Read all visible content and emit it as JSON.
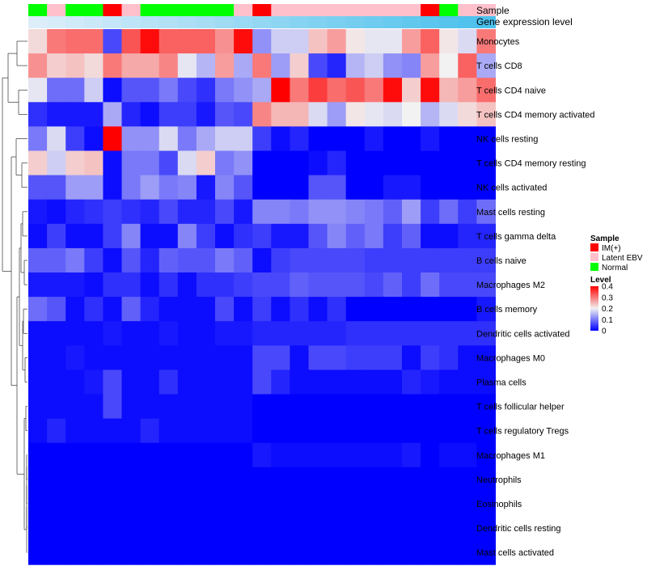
{
  "chart_data": {
    "type": "heatmap",
    "title": "",
    "colors": {
      "low": "#0000ff",
      "mid": "#f2f2f2",
      "high": "#ff0000",
      "grad_light": "#ddeefa",
      "grad_dark": "#4ac0ec"
    },
    "annotations": {
      "sample_label": "Sample",
      "gene_label": "Gene expression level",
      "sample": [
        "Normal",
        "Latent EBV",
        "Normal",
        "Normal",
        "IM(+)",
        "Latent EBV",
        "Normal",
        "Normal",
        "Normal",
        "Normal",
        "Normal",
        "Latent EBV",
        "IM(+)",
        "Latent EBV",
        "Latent EBV",
        "Latent EBV",
        "Latent EBV",
        "Latent EBV",
        "Latent EBV",
        "Latent EBV",
        "Latent EBV",
        "IM(+)",
        "Normal",
        "Latent EBV",
        "Latent EBV"
      ]
    },
    "legend_sample": {
      "title": "Sample",
      "entries": [
        {
          "label": "IM(+)",
          "color": "#ff0000"
        },
        {
          "label": "Latent EBV",
          "color": "#ffc0cb"
        },
        {
          "label": "Normal",
          "color": "#00ff00"
        }
      ]
    },
    "legend_level": {
      "title": "Level",
      "ticks": [
        "0.4",
        "0.3",
        "0.2",
        "0.1",
        "0"
      ],
      "range": [
        0,
        0.4
      ]
    },
    "rows": [
      "Monocytes",
      "T cells CD8",
      "T cells CD4 naive",
      "T cells CD4 memory activated",
      "NK cells resting",
      "T cells CD4 memory resting",
      "NK cells activated",
      "Mast cells resting",
      "T cells gamma delta",
      "B cells naive",
      "Macrophages M2",
      "B cells memory",
      "Dendritic cells activated",
      "Macrophages M0",
      "Plasma cells",
      "T cells follicular helper",
      "T cells regulatory  Tregs",
      "Macrophages M1",
      "Neutrophils",
      "Eosinophils",
      "Dendritic cells resting",
      "Mast cells activated"
    ],
    "values": [
      [
        0.22,
        0.3,
        0.31,
        0.31,
        0.06,
        0.33,
        0.39,
        0.32,
        0.32,
        0.32,
        0.28,
        0.39,
        0.12,
        0.17,
        0.17,
        0.24,
        0.27,
        0.21,
        0.19,
        0.19,
        0.27,
        0.32,
        0.21,
        0.18,
        0.3
      ],
      [
        0.28,
        0.23,
        0.24,
        0.22,
        0.3,
        0.26,
        0.26,
        0.29,
        0.19,
        0.15,
        0.27,
        0.14,
        0.3,
        0.13,
        0.23,
        0.06,
        0.03,
        0.15,
        0.17,
        0.12,
        0.11,
        0.27,
        0.2,
        0.32,
        0.14
      ],
      [
        0.19,
        0.09,
        0.09,
        0.17,
        0.01,
        0.07,
        0.07,
        0.1,
        0.06,
        0.04,
        0.1,
        0.12,
        0.14,
        0.4,
        0.3,
        0.35,
        0.31,
        0.33,
        0.3,
        0.39,
        0.23,
        0.39,
        0.25,
        0.27,
        0.31
      ],
      [
        0.04,
        0.02,
        0.02,
        0.02,
        0.14,
        0.03,
        0.01,
        0.05,
        0.05,
        0.02,
        0.07,
        0.06,
        0.29,
        0.25,
        0.25,
        0.18,
        0.13,
        0.21,
        0.19,
        0.18,
        0.2,
        0.15,
        0.18,
        0.22,
        0.24
      ],
      [
        0.1,
        0.18,
        0.05,
        0.01,
        0.4,
        0.12,
        0.12,
        0.18,
        0.1,
        0.14,
        0.17,
        0.17,
        0.05,
        0.01,
        0.03,
        0.0,
        0.0,
        0.0,
        0.02,
        0.0,
        0.0,
        0.02,
        0.0,
        0.0,
        0.0
      ],
      [
        0.23,
        0.17,
        0.23,
        0.24,
        0.01,
        0.1,
        0.1,
        0.06,
        0.18,
        0.23,
        0.1,
        0.12,
        0.0,
        0.0,
        0.0,
        0.01,
        0.03,
        0.0,
        0.0,
        0.0,
        0.0,
        0.0,
        0.0,
        0.0,
        0.0
      ],
      [
        0.07,
        0.07,
        0.13,
        0.13,
        0.01,
        0.1,
        0.13,
        0.1,
        0.11,
        0.02,
        0.11,
        0.07,
        0.0,
        0.0,
        0.0,
        0.07,
        0.07,
        0.0,
        0.0,
        0.02,
        0.02,
        0.0,
        0.0,
        0.0,
        0.0
      ],
      [
        0.02,
        0.01,
        0.03,
        0.04,
        0.05,
        0.04,
        0.03,
        0.06,
        0.03,
        0.03,
        0.06,
        0.02,
        0.11,
        0.11,
        0.1,
        0.12,
        0.12,
        0.11,
        0.1,
        0.08,
        0.13,
        0.05,
        0.09,
        0.05,
        0.09
      ],
      [
        0.01,
        0.05,
        0.01,
        0.01,
        0.05,
        0.11,
        0.01,
        0.01,
        0.11,
        0.05,
        0.01,
        0.04,
        0.05,
        0.02,
        0.02,
        0.07,
        0.11,
        0.08,
        0.1,
        0.05,
        0.08,
        0.01,
        0.01,
        0.03,
        0.03
      ],
      [
        0.08,
        0.08,
        0.1,
        0.05,
        0.01,
        0.07,
        0.03,
        0.08,
        0.07,
        0.07,
        0.1,
        0.08,
        0.01,
        0.05,
        0.06,
        0.06,
        0.06,
        0.06,
        0.05,
        0.05,
        0.05,
        0.05,
        0.05,
        0.05,
        0.05
      ],
      [
        0.02,
        0.02,
        0.02,
        0.01,
        0.04,
        0.04,
        0.01,
        0.04,
        0.01,
        0.04,
        0.04,
        0.05,
        0.06,
        0.06,
        0.08,
        0.07,
        0.07,
        0.07,
        0.06,
        0.08,
        0.05,
        0.09,
        0.06,
        0.06,
        0.06
      ],
      [
        0.09,
        0.07,
        0.01,
        0.04,
        0.01,
        0.08,
        0.03,
        0.01,
        0.01,
        0.01,
        0.06,
        0.01,
        0.05,
        0.01,
        0.04,
        0.01,
        0.04,
        0.0,
        0.0,
        0.0,
        0.0,
        0.0,
        0.0,
        0.0,
        0.02
      ],
      [
        0.01,
        0.01,
        0.01,
        0.01,
        0.02,
        0.01,
        0.01,
        0.02,
        0.01,
        0.01,
        0.02,
        0.02,
        0.03,
        0.03,
        0.03,
        0.03,
        0.03,
        0.04,
        0.04,
        0.04,
        0.04,
        0.04,
        0.04,
        0.04,
        0.04
      ],
      [
        0.01,
        0.01,
        0.02,
        0.01,
        0.01,
        0.01,
        0.01,
        0.01,
        0.01,
        0.01,
        0.01,
        0.01,
        0.06,
        0.06,
        0.01,
        0.06,
        0.06,
        0.05,
        0.05,
        0.05,
        0.01,
        0.05,
        0.04,
        0.01,
        0.01
      ],
      [
        0.01,
        0.01,
        0.01,
        0.02,
        0.06,
        0.01,
        0.01,
        0.04,
        0.01,
        0.01,
        0.01,
        0.01,
        0.06,
        0.03,
        0.01,
        0.01,
        0.01,
        0.01,
        0.01,
        0.01,
        0.03,
        0.02,
        0.01,
        0.01,
        0.01
      ],
      [
        0.01,
        0.01,
        0.01,
        0.01,
        0.06,
        0.01,
        0.01,
        0.01,
        0.01,
        0.01,
        0.01,
        0.01,
        0.0,
        0.0,
        0.0,
        0.0,
        0.0,
        0.0,
        0.0,
        0.0,
        0.0,
        0.0,
        0.0,
        0.0,
        0.0
      ],
      [
        0.01,
        0.03,
        0.01,
        0.01,
        0.01,
        0.01,
        0.03,
        0.01,
        0.01,
        0.01,
        0.01,
        0.01,
        0.0,
        0.0,
        0.0,
        0.0,
        0.0,
        0.0,
        0.0,
        0.0,
        0.0,
        0.0,
        0.0,
        0.0,
        0.0
      ],
      [
        0.0,
        0.0,
        0.0,
        0.0,
        0.0,
        0.0,
        0.0,
        0.0,
        0.0,
        0.0,
        0.0,
        0.0,
        0.02,
        0.01,
        0.01,
        0.01,
        0.01,
        0.01,
        0.01,
        0.01,
        0.02,
        0.0,
        0.01,
        0.01,
        0.0
      ],
      [
        0.0,
        0.0,
        0.0,
        0.0,
        0.0,
        0.0,
        0.0,
        0.0,
        0.0,
        0.0,
        0.0,
        0.0,
        0.0,
        0.0,
        0.0,
        0.0,
        0.0,
        0.0,
        0.0,
        0.0,
        0.0,
        0.0,
        0.0,
        0.0,
        0.0
      ],
      [
        0.0,
        0.0,
        0.0,
        0.0,
        0.0,
        0.0,
        0.0,
        0.0,
        0.0,
        0.0,
        0.0,
        0.0,
        0.0,
        0.0,
        0.0,
        0.0,
        0.0,
        0.0,
        0.0,
        0.0,
        0.0,
        0.0,
        0.0,
        0.0,
        0.0
      ],
      [
        0.0,
        0.0,
        0.0,
        0.0,
        0.0,
        0.0,
        0.0,
        0.0,
        0.0,
        0.0,
        0.0,
        0.0,
        0.0,
        0.0,
        0.0,
        0.0,
        0.0,
        0.0,
        0.0,
        0.0,
        0.0,
        0.0,
        0.0,
        0.0,
        0.0
      ],
      [
        0.0,
        0.0,
        0.0,
        0.0,
        0.0,
        0.0,
        0.0,
        0.0,
        0.0,
        0.0,
        0.0,
        0.0,
        0.0,
        0.0,
        0.0,
        0.0,
        0.0,
        0.0,
        0.0,
        0.0,
        0.0,
        0.0,
        0.0,
        0.0,
        0.0
      ]
    ]
  }
}
